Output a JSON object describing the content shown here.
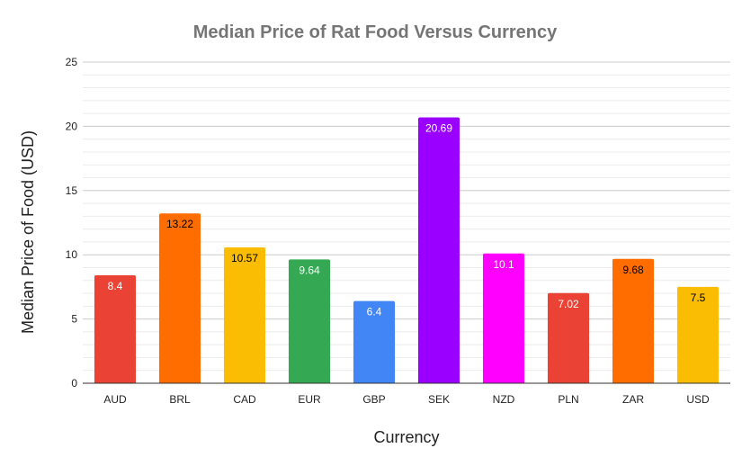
{
  "chart_data": {
    "type": "bar",
    "title": "Median Price of Rat Food Versus Currency",
    "xlabel": "Currency",
    "ylabel": "Median Price of Food (USD)",
    "categories": [
      "AUD",
      "BRL",
      "CAD",
      "EUR",
      "GBP",
      "SEK",
      "NZD",
      "PLN",
      "ZAR",
      "USD"
    ],
    "values": [
      8.4,
      13.22,
      10.57,
      9.64,
      6.4,
      20.69,
      10.1,
      7.02,
      9.68,
      7.5
    ],
    "data_labels": [
      "8.4",
      "13.22",
      "10.57",
      "9.64",
      "6.4",
      "20.69",
      "10.1",
      "7.02",
      "9.68",
      "7.5"
    ],
    "colors": [
      "#ea4335",
      "#ff6d01",
      "#fbbc04",
      "#34a853",
      "#4285f4",
      "#9900ff",
      "#ff00ff",
      "#ea4335",
      "#ff6d01",
      "#fbbc04"
    ],
    "label_colors": [
      "#ffffff",
      "#000000",
      "#000000",
      "#ffffff",
      "#ffffff",
      "#ffffff",
      "#ffffff",
      "#ffffff",
      "#000000",
      "#000000"
    ],
    "ylim": [
      0,
      25
    ],
    "yticks": [
      0,
      5,
      10,
      15,
      20,
      25
    ],
    "minor_gridlines": true,
    "legend": "none"
  }
}
